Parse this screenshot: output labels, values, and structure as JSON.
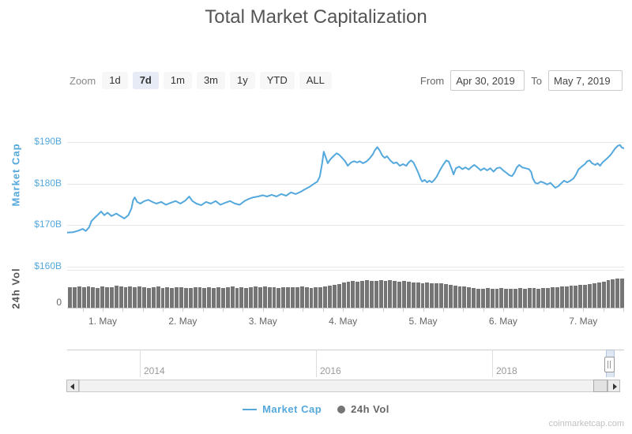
{
  "title": "Total Market Capitalization",
  "watermark": "coinmarketcap.com",
  "controls": {
    "zoom_label": "Zoom",
    "zoom_buttons": [
      {
        "label": "1d",
        "selected": false
      },
      {
        "label": "7d",
        "selected": true
      },
      {
        "label": "1m",
        "selected": false
      },
      {
        "label": "3m",
        "selected": false
      },
      {
        "label": "1y",
        "selected": false
      },
      {
        "label": "YTD",
        "selected": false
      },
      {
        "label": "ALL",
        "selected": false
      }
    ],
    "from_label": "From",
    "from_value": "Apr 30, 2019",
    "to_label": "To",
    "to_value": "May 7, 2019"
  },
  "legend": {
    "market_cap": "Market Cap",
    "volume": "24h Vol"
  },
  "navigator": {
    "years": [
      "2014",
      "2016",
      "2018"
    ]
  },
  "colors": {
    "line": "#54a8dc",
    "volume_bar": "#757575",
    "grid": "#e7e7e7",
    "axis_label_blue": "#54a8dc",
    "selected_zoom_bg": "#e6ebf5"
  },
  "chart_data": {
    "type": "line+bar",
    "title": "Total Market Capitalization",
    "x_axis": {
      "note": "x values are days since Apr 30 2019 00:00 UTC; visible range Apr 30 ~13:00 to May 7 ~12:00",
      "range_days": [
        0.556,
        7.51
      ],
      "tick_days": [
        1,
        2,
        3,
        4,
        5,
        6,
        7
      ],
      "tick_labels": [
        "1. May",
        "2. May",
        "3. May",
        "4. May",
        "5. May",
        "6. May",
        "7. May"
      ]
    },
    "market_cap_series": {
      "name": "Market Cap",
      "color": "#54a8dc",
      "ylabel": "Market Cap",
      "unit": "USD billions",
      "y_ticks": [
        "$190B",
        "$180B",
        "$170B",
        "$160B"
      ],
      "y_tick_values": [
        190,
        180,
        170,
        160
      ],
      "ylim_display": [
        159.8,
        194.2
      ],
      "points": [
        [
          0.56,
          168.2
        ],
        [
          0.63,
          168.3
        ],
        [
          0.7,
          168.7
        ],
        [
          0.75,
          169.1
        ],
        [
          0.79,
          168.6
        ],
        [
          0.83,
          169.5
        ],
        [
          0.86,
          171.0
        ],
        [
          0.9,
          171.8
        ],
        [
          0.94,
          172.5
        ],
        [
          0.98,
          173.3
        ],
        [
          1.02,
          172.4
        ],
        [
          1.06,
          173.0
        ],
        [
          1.11,
          172.2
        ],
        [
          1.17,
          172.8
        ],
        [
          1.22,
          172.2
        ],
        [
          1.27,
          171.6
        ],
        [
          1.32,
          172.4
        ],
        [
          1.36,
          174.1
        ],
        [
          1.38,
          176.0
        ],
        [
          1.4,
          176.7
        ],
        [
          1.43,
          175.6
        ],
        [
          1.47,
          175.2
        ],
        [
          1.52,
          175.8
        ],
        [
          1.57,
          176.1
        ],
        [
          1.62,
          175.6
        ],
        [
          1.67,
          175.2
        ],
        [
          1.73,
          175.6
        ],
        [
          1.79,
          174.9
        ],
        [
          1.85,
          175.4
        ],
        [
          1.91,
          175.8
        ],
        [
          1.97,
          175.2
        ],
        [
          2.03,
          175.9
        ],
        [
          2.08,
          176.9
        ],
        [
          2.12,
          175.8
        ],
        [
          2.17,
          175.2
        ],
        [
          2.23,
          174.8
        ],
        [
          2.29,
          175.6
        ],
        [
          2.35,
          175.2
        ],
        [
          2.41,
          175.8
        ],
        [
          2.47,
          174.9
        ],
        [
          2.53,
          175.4
        ],
        [
          2.59,
          175.8
        ],
        [
          2.65,
          175.2
        ],
        [
          2.71,
          174.9
        ],
        [
          2.77,
          175.8
        ],
        [
          2.82,
          176.3
        ],
        [
          2.88,
          176.7
        ],
        [
          2.94,
          176.9
        ],
        [
          3.0,
          177.2
        ],
        [
          3.05,
          176.9
        ],
        [
          3.11,
          177.3
        ],
        [
          3.17,
          176.9
        ],
        [
          3.23,
          177.5
        ],
        [
          3.29,
          177.1
        ],
        [
          3.35,
          177.9
        ],
        [
          3.41,
          177.5
        ],
        [
          3.47,
          178.0
        ],
        [
          3.52,
          178.6
        ],
        [
          3.58,
          179.2
        ],
        [
          3.64,
          180.0
        ],
        [
          3.68,
          180.5
        ],
        [
          3.71,
          181.7
        ],
        [
          3.74,
          184.9
        ],
        [
          3.76,
          187.7
        ],
        [
          3.78,
          186.6
        ],
        [
          3.81,
          184.9
        ],
        [
          3.84,
          185.8
        ],
        [
          3.88,
          186.6
        ],
        [
          3.92,
          187.3
        ],
        [
          3.95,
          187.0
        ],
        [
          3.99,
          186.2
        ],
        [
          4.03,
          185.3
        ],
        [
          4.06,
          184.3
        ],
        [
          4.1,
          185.1
        ],
        [
          4.14,
          185.4
        ],
        [
          4.18,
          185.1
        ],
        [
          4.21,
          185.4
        ],
        [
          4.25,
          184.9
        ],
        [
          4.29,
          185.3
        ],
        [
          4.33,
          186.0
        ],
        [
          4.37,
          187.0
        ],
        [
          4.4,
          188.1
        ],
        [
          4.43,
          188.8
        ],
        [
          4.46,
          187.9
        ],
        [
          4.49,
          186.8
        ],
        [
          4.52,
          186.2
        ],
        [
          4.55,
          186.6
        ],
        [
          4.59,
          185.6
        ],
        [
          4.63,
          184.9
        ],
        [
          4.67,
          185.1
        ],
        [
          4.71,
          184.3
        ],
        [
          4.75,
          184.7
        ],
        [
          4.79,
          184.3
        ],
        [
          4.82,
          185.1
        ],
        [
          4.85,
          185.6
        ],
        [
          4.88,
          185.1
        ],
        [
          4.91,
          183.9
        ],
        [
          4.94,
          182.6
        ],
        [
          4.97,
          181.1
        ],
        [
          4.99,
          180.5
        ],
        [
          5.02,
          180.9
        ],
        [
          5.05,
          180.3
        ],
        [
          5.08,
          180.7
        ],
        [
          5.11,
          180.3
        ],
        [
          5.14,
          180.9
        ],
        [
          5.17,
          181.7
        ],
        [
          5.21,
          183.2
        ],
        [
          5.25,
          184.5
        ],
        [
          5.29,
          185.6
        ],
        [
          5.32,
          185.3
        ],
        [
          5.36,
          183.4
        ],
        [
          5.38,
          182.2
        ],
        [
          5.41,
          183.7
        ],
        [
          5.45,
          184.1
        ],
        [
          5.49,
          183.5
        ],
        [
          5.53,
          183.9
        ],
        [
          5.57,
          183.4
        ],
        [
          5.61,
          184.1
        ],
        [
          5.64,
          184.5
        ],
        [
          5.68,
          183.9
        ],
        [
          5.72,
          183.2
        ],
        [
          5.76,
          183.7
        ],
        [
          5.8,
          183.2
        ],
        [
          5.84,
          183.7
        ],
        [
          5.88,
          182.9
        ],
        [
          5.92,
          183.7
        ],
        [
          5.96,
          183.9
        ],
        [
          6.0,
          183.2
        ],
        [
          6.04,
          182.6
        ],
        [
          6.08,
          182.0
        ],
        [
          6.11,
          181.8
        ],
        [
          6.14,
          182.6
        ],
        [
          6.17,
          183.9
        ],
        [
          6.2,
          184.5
        ],
        [
          6.24,
          183.9
        ],
        [
          6.28,
          183.7
        ],
        [
          6.32,
          183.5
        ],
        [
          6.35,
          182.8
        ],
        [
          6.37,
          181.3
        ],
        [
          6.4,
          180.2
        ],
        [
          6.43,
          180.0
        ],
        [
          6.47,
          180.5
        ],
        [
          6.51,
          180.2
        ],
        [
          6.55,
          179.8
        ],
        [
          6.59,
          180.2
        ],
        [
          6.62,
          179.6
        ],
        [
          6.65,
          179.0
        ],
        [
          6.69,
          179.4
        ],
        [
          6.72,
          180.0
        ],
        [
          6.76,
          180.7
        ],
        [
          6.8,
          180.3
        ],
        [
          6.84,
          180.7
        ],
        [
          6.88,
          181.3
        ],
        [
          6.91,
          182.2
        ],
        [
          6.94,
          183.4
        ],
        [
          6.98,
          184.1
        ],
        [
          7.02,
          184.7
        ],
        [
          7.05,
          185.4
        ],
        [
          7.08,
          185.6
        ],
        [
          7.11,
          184.9
        ],
        [
          7.15,
          184.5
        ],
        [
          7.18,
          184.9
        ],
        [
          7.21,
          184.3
        ],
        [
          7.24,
          185.1
        ],
        [
          7.28,
          185.8
        ],
        [
          7.31,
          186.3
        ],
        [
          7.34,
          186.9
        ],
        [
          7.37,
          187.7
        ],
        [
          7.4,
          188.5
        ],
        [
          7.43,
          189.1
        ],
        [
          7.46,
          189.3
        ],
        [
          7.48,
          188.7
        ],
        [
          7.51,
          188.5
        ]
      ]
    },
    "volume_series": {
      "name": "24h Vol",
      "color": "#757575",
      "ylabel": "24h Vol",
      "y_tick": "0",
      "note": "only '0' labeled on axis; values below are bar heights as % of volume panel height, left-to-right across the visible range",
      "bar_heights_pct": [
        54,
        55,
        56,
        54,
        57,
        55,
        53,
        56,
        55,
        54,
        58,
        56,
        55,
        57,
        54,
        56,
        55,
        53,
        55,
        56,
        52,
        54,
        53,
        55,
        54,
        52,
        53,
        55,
        54,
        53,
        54,
        52,
        55,
        53,
        54,
        56,
        53,
        54,
        52,
        54,
        57,
        55,
        56,
        54,
        55,
        53,
        54,
        55,
        55,
        54,
        56,
        55,
        53,
        55,
        54,
        56,
        58,
        60,
        63,
        66,
        68,
        70,
        69,
        71,
        72,
        70,
        71,
        73,
        70,
        72,
        71,
        69,
        70,
        68,
        66,
        67,
        65,
        66,
        64,
        65,
        64,
        62,
        60,
        58,
        57,
        56,
        54,
        52,
        51,
        50,
        52,
        51,
        50,
        52,
        51,
        50,
        51,
        52,
        50,
        53,
        52,
        51,
        53,
        52,
        54,
        55,
        57,
        56,
        58,
        59,
        60,
        61,
        62,
        64,
        66,
        68,
        72,
        76,
        78,
        77
      ]
    }
  }
}
